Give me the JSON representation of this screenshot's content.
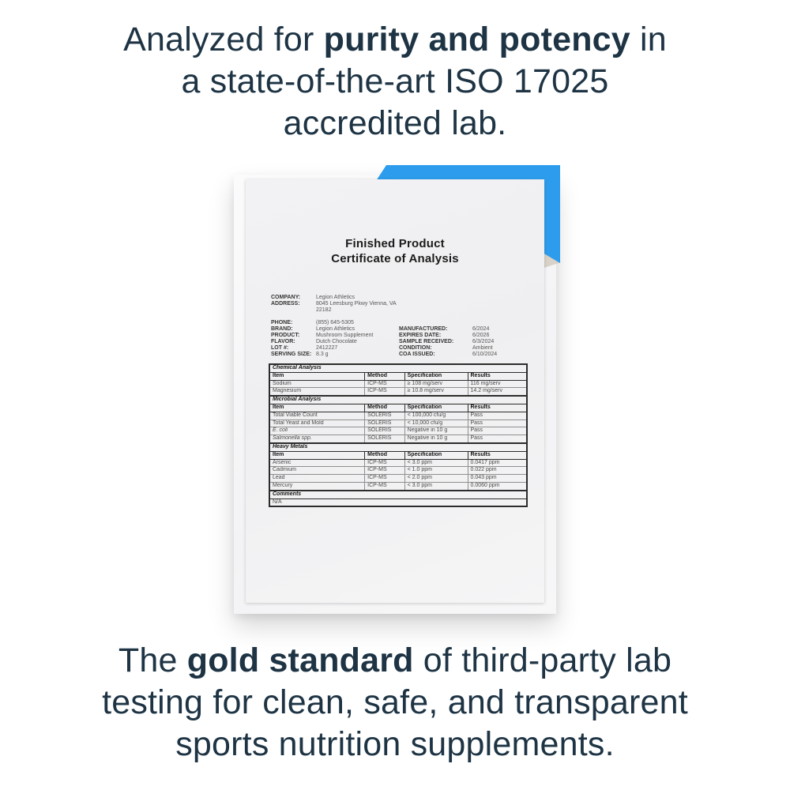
{
  "headline": {
    "line1_pre": "Analyzed for ",
    "line1_bold": "purity and potency",
    "line1_post": " in",
    "line2": "a state-of-the-art ISO 17025",
    "line3": "accredited lab."
  },
  "footer": {
    "line1_pre": "The ",
    "line1_bold": "gold standard",
    "line1_post": " of third-party lab",
    "line2": "testing for clean, safe, and transparent",
    "line3": "sports nutrition supplements."
  },
  "certificate": {
    "title_line1": "Finished Product",
    "title_line2": "Certificate of Analysis",
    "company_info": [
      {
        "label": "COMPANY:",
        "value": "Legion Athletics"
      },
      {
        "label": "ADDRESS:",
        "value": "8045 Leesburg Pkwy Vienna, VA\n22182"
      }
    ],
    "product_info": [
      {
        "label": "PHONE:",
        "value": "(855) 645-5305"
      },
      {
        "label": "BRAND:",
        "value": "Legion Athletics"
      },
      {
        "label": "PRODUCT:",
        "value": "Mushroom Supplement"
      },
      {
        "label": "FLAVOR:",
        "value": "Dutch Chocolate"
      },
      {
        "label": "LOT #:",
        "value": "2412227"
      },
      {
        "label": "SERVING SIZE:",
        "value": "8.3 g"
      }
    ],
    "dates_info": [
      {
        "label": "MANUFACTURED:",
        "value": "6/2024"
      },
      {
        "label": "EXPIRES DATE:",
        "value": "6/2026"
      },
      {
        "label": "SAMPLE RECEIVED:",
        "value": "6/3/2024"
      },
      {
        "label": "CONDITION:",
        "value": "Ambient"
      },
      {
        "label": "COA ISSUED:",
        "value": "6/10/2024"
      }
    ],
    "table": {
      "columns": [
        "Item",
        "Method",
        "Specification",
        "Results"
      ],
      "sections": [
        {
          "name": "Chemical Analysis",
          "show_header": true,
          "rows": [
            {
              "item": "Sodium",
              "method": "ICP-MS",
              "spec": "≥ 108 mg/serv",
              "result": "116 mg/serv"
            },
            {
              "item": "Magnesium",
              "method": "ICP-MS",
              "spec": "≥ 10.8 mg/serv",
              "result": "14.2 mg/serv"
            }
          ]
        },
        {
          "name": "Microbial Analysis",
          "show_header": true,
          "rows": [
            {
              "item": "Total Viable Count",
              "method": "SOLERIS",
              "spec": "< 100,000 cfu/g",
              "result": "Pass"
            },
            {
              "item": "Total Yeast and Mold",
              "method": "SOLERIS",
              "spec": "< 10,000 cfu/g",
              "result": "Pass"
            },
            {
              "item": "E. coli",
              "italic": true,
              "method": "SOLERIS",
              "spec": "Negative in 10 g",
              "result": "Pass"
            },
            {
              "item": "Salmonella spp.",
              "italic": true,
              "method": "SOLERIS",
              "spec": "Negative in 10 g",
              "result": "Pass"
            }
          ]
        },
        {
          "name": "Heavy Metals",
          "show_header": true,
          "rows": [
            {
              "item": "Arsenic",
              "method": "ICP-MS",
              "spec": "< 3.0 ppm",
              "result": "0.0417 ppm"
            },
            {
              "item": "Cadmium",
              "method": "ICP-MS",
              "spec": "< 1.0 ppm",
              "result": "0.022 ppm"
            },
            {
              "item": "Lead",
              "method": "ICP-MS",
              "spec": "< 2.0 ppm",
              "result": "0.043 ppm"
            },
            {
              "item": "Mercury",
              "method": "ICP-MS",
              "spec": "< 3.0 ppm",
              "result": "0.0060 ppm"
            }
          ]
        },
        {
          "name": "Comments",
          "show_header": false,
          "rows": [
            {
              "item": "N/A",
              "span": true
            }
          ]
        }
      ]
    }
  },
  "colors": {
    "accent_blue": "#2e9cec",
    "headline_navy": "#1e3444",
    "paper": "#f1f1f3"
  }
}
